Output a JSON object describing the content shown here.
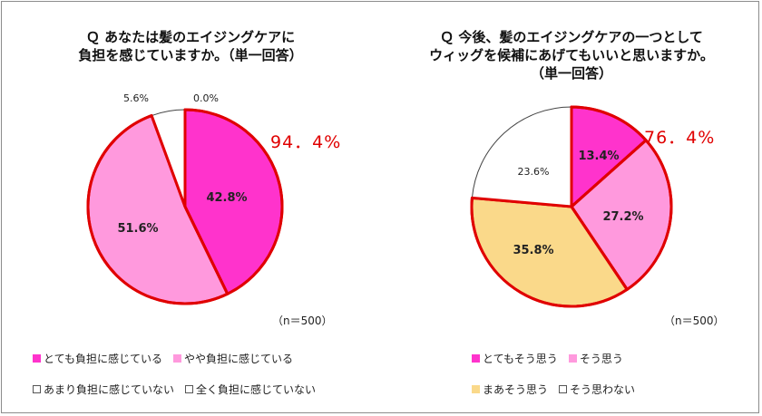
{
  "colors": {
    "outline": "#e00000",
    "strong": "#ff33cc",
    "moderate": "#ff99dd",
    "somewhat": "#fad98a",
    "none": "#ffffff"
  },
  "chart_data": [
    {
      "type": "pie",
      "title_lines": [
        "Ｑ あなたは髪のエイジングケアに",
        "負担を感じていますか。（単一回答）"
      ],
      "n_label": "（n＝500）",
      "highlight_label": "94．4%",
      "slices": [
        {
          "name": "とても負担に感じている",
          "value": 42.8,
          "label": "42.8%",
          "color": "#ff33cc"
        },
        {
          "name": "やや負担に感じている",
          "value": 51.6,
          "label": "51.6%",
          "color": "#ff99dd"
        },
        {
          "name": "あまり負担に感じていない",
          "value": 5.6,
          "label": "5.6%",
          "color": "#ffffff"
        },
        {
          "name": "全く負担に感じていない",
          "value": 0.0,
          "label": "0.0%",
          "color": "#ffffff"
        }
      ],
      "legend_rows": [
        [
          "とても負担に感じている",
          "やや負担に感じている"
        ],
        [
          "あまり負担に感じていない",
          "全く負担に感じていない"
        ]
      ]
    },
    {
      "type": "pie",
      "title_lines": [
        "Ｑ 今後、髪のエイジングケアの一つとして",
        "ウィッグを候補にあげてもいいと思いますか。",
        "（単一回答）"
      ],
      "n_label": "（n＝500）",
      "highlight_label": "76．4%",
      "slices": [
        {
          "name": "とてもそう思う",
          "value": 13.4,
          "label": "13.4%",
          "color": "#ff33cc"
        },
        {
          "name": "そう思う",
          "value": 27.2,
          "label": "27.2%",
          "color": "#ff99dd"
        },
        {
          "name": "まあそう思う",
          "value": 35.8,
          "label": "35.8%",
          "color": "#fad98a"
        },
        {
          "name": "そう思わない",
          "value": 23.6,
          "label": "23.6%",
          "color": "#ffffff"
        }
      ],
      "legend_rows": [
        [
          "とてもそう思う",
          "そう思う"
        ],
        [
          "まあそう思う",
          "そう思わない"
        ]
      ]
    }
  ]
}
